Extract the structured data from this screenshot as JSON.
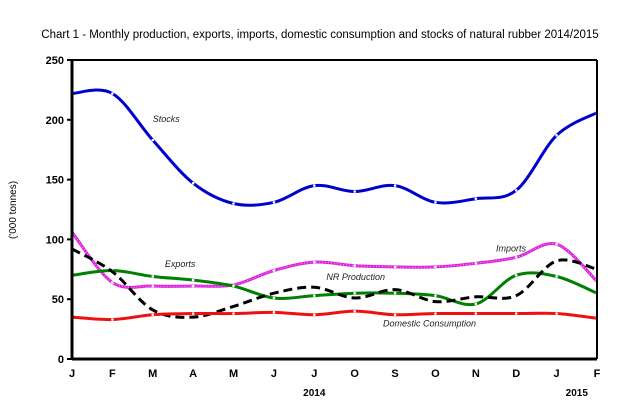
{
  "chart_data": {
    "type": "line",
    "title": "Chart 1 - Monthly production, exports, imports, domestic consumption and stocks of natural rubber 2014/2015",
    "xlabel": "",
    "ylabel": "('000 tonnes)",
    "ylim": [
      0,
      250
    ],
    "yticks": [
      0,
      50,
      100,
      150,
      200,
      250
    ],
    "categories": [
      "J",
      "F",
      "M",
      "A",
      "M",
      "J",
      "J",
      "O",
      "S",
      "O",
      "N",
      "D",
      "J",
      "F"
    ],
    "year_labels": [
      {
        "label": "2014",
        "at_index": 6
      },
      {
        "label": "2015",
        "at_index": 12.5
      }
    ],
    "grid": false,
    "legend": "inline-labels",
    "series": [
      {
        "name": "Stocks",
        "color": "#0000CC",
        "style": "solid",
        "values": [
          222,
          222,
          183,
          147,
          130,
          131,
          145,
          140,
          145,
          131,
          134,
          141,
          187,
          206
        ],
        "label_at": [
          2,
          198
        ]
      },
      {
        "name": "Imports",
        "color": "#DD22DD",
        "style": "dotted-solid",
        "values": [
          106,
          64,
          61,
          61,
          62,
          74,
          81,
          78,
          77,
          77,
          80,
          85,
          96,
          65
        ],
        "label_at": [
          10.5,
          90
        ]
      },
      {
        "name": "Exports",
        "color": "#008000",
        "style": "solid",
        "values": [
          70,
          74,
          69,
          66,
          61,
          51,
          53,
          55,
          55,
          53,
          46,
          70,
          69,
          55
        ],
        "label_at": [
          2.3,
          77
        ]
      },
      {
        "name": "NR Production",
        "color": "#000000",
        "style": "dashed",
        "values": [
          92,
          73,
          41,
          35,
          44,
          55,
          60,
          51,
          58,
          48,
          52,
          53,
          82,
          75
        ],
        "label_at": [
          6.3,
          66
        ]
      },
      {
        "name": "Domestic Consumption",
        "color": "#EE1111",
        "style": "solid",
        "values": [
          35,
          33,
          37,
          38,
          38,
          39,
          37,
          40,
          37,
          38,
          38,
          38,
          38,
          34
        ],
        "label_at": [
          7.7,
          27
        ]
      }
    ]
  }
}
